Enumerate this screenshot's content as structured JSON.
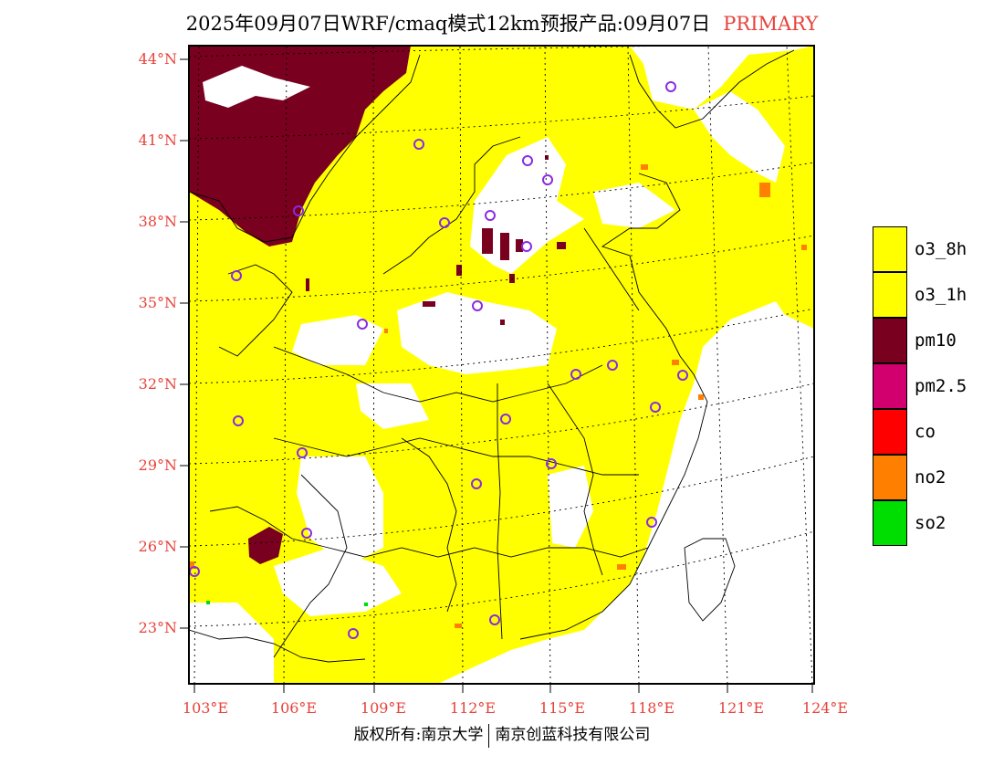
{
  "header": {
    "title": "2025年09月07日WRF/cmaq模式12km预报产品:09月07日",
    "category": "PRIMARY"
  },
  "map": {
    "lat_labels": [
      "44°N",
      "41°N",
      "38°N",
      "35°N",
      "32°N",
      "29°N",
      "26°N",
      "23°N"
    ],
    "lon_labels": [
      "103°E",
      "106°E",
      "109°E",
      "112°E",
      "115°E",
      "118°E",
      "121°E",
      "124°E"
    ],
    "colors": {
      "o3_8h": "#ffff00",
      "pm10": "#7a0020",
      "no2": "#ff8000",
      "so2": "#00dd00",
      "city_marker": "#8a2be2",
      "background": "#ffffff"
    }
  },
  "legend": {
    "items": [
      {
        "label": "o3_8h",
        "color": "#ffff00"
      },
      {
        "label": "o3_1h",
        "color": "#ffff00"
      },
      {
        "label": "pm10",
        "color": "#7a0020"
      },
      {
        "label": "pm2.5",
        "color": "#d2006e"
      },
      {
        "label": "co",
        "color": "#ff0000"
      },
      {
        "label": "no2",
        "color": "#ff8000"
      },
      {
        "label": "so2",
        "color": "#00dd00"
      }
    ]
  },
  "footer": {
    "left": "版权所有:南京大学",
    "right": "南京创蓝科技有限公司"
  }
}
